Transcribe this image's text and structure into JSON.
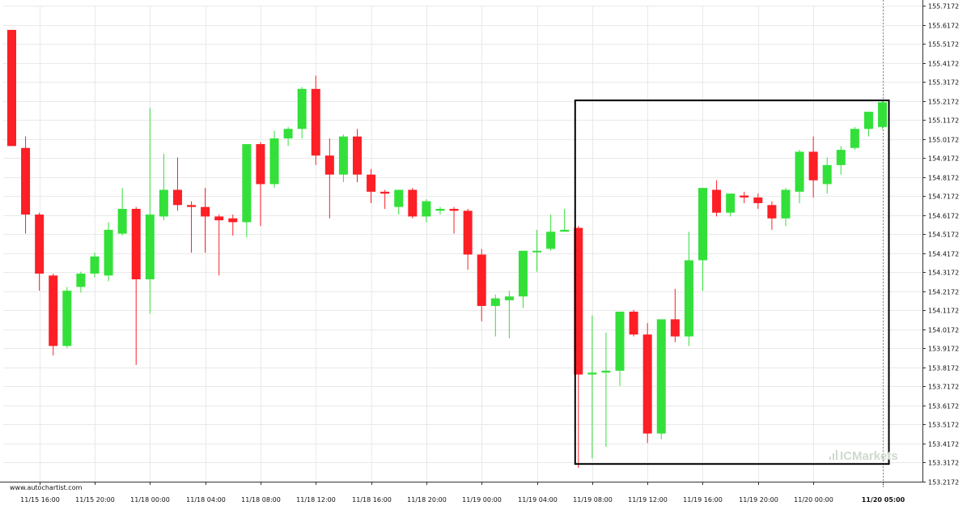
{
  "credit": "www.autochartist.com",
  "watermark": "ICMarkets",
  "colors": {
    "up": "#33e03a",
    "down": "#fc1f26",
    "grid": "#e9e9e9",
    "axis": "#333333",
    "box": "#000000"
  },
  "chart_data": {
    "type": "candlestick",
    "ylim": [
      153.2172,
      155.7172
    ],
    "y_ticks": [
      155.7172,
      155.6172,
      155.5172,
      155.4172,
      155.3172,
      155.2172,
      155.1172,
      155.0172,
      154.9172,
      154.8172,
      154.7172,
      154.6172,
      154.5172,
      154.4172,
      154.3172,
      154.2172,
      154.1172,
      154.0172,
      153.9172,
      153.8172,
      153.7172,
      153.6172,
      153.5172,
      153.4172,
      153.3172,
      153.2172
    ],
    "x_ticks": [
      {
        "label": "11/15 16:00",
        "index": 2
      },
      {
        "label": "11/15 20:00",
        "index": 6
      },
      {
        "label": "11/18 00:00",
        "index": 10
      },
      {
        "label": "11/18 04:00",
        "index": 14
      },
      {
        "label": "11/18 08:00",
        "index": 18
      },
      {
        "label": "11/18 12:00",
        "index": 22
      },
      {
        "label": "11/18 16:00",
        "index": 26
      },
      {
        "label": "11/18 20:00",
        "index": 30
      },
      {
        "label": "11/19 00:00",
        "index": 34
      },
      {
        "label": "11/19 04:00",
        "index": 38
      },
      {
        "label": "11/19 08:00",
        "index": 42
      },
      {
        "label": "11/19 12:00",
        "index": 46
      },
      {
        "label": "11/19 16:00",
        "index": 50
      },
      {
        "label": "11/19 20:00",
        "index": 54
      },
      {
        "label": "11/20 00:00",
        "index": 58
      },
      {
        "label": "11/20 05:00",
        "index": 63,
        "bold": true
      }
    ],
    "candles": [
      {
        "o": 155.59,
        "h": 155.59,
        "l": 154.98,
        "c": 154.98
      },
      {
        "o": 154.97,
        "h": 155.03,
        "l": 154.52,
        "c": 154.62
      },
      {
        "o": 154.62,
        "h": 154.63,
        "l": 154.22,
        "c": 154.31
      },
      {
        "o": 154.3,
        "h": 154.31,
        "l": 153.88,
        "c": 153.93
      },
      {
        "o": 153.93,
        "h": 154.24,
        "l": 153.92,
        "c": 154.22
      },
      {
        "o": 154.24,
        "h": 154.32,
        "l": 154.21,
        "c": 154.31
      },
      {
        "o": 154.31,
        "h": 154.42,
        "l": 154.29,
        "c": 154.4
      },
      {
        "o": 154.3,
        "h": 154.58,
        "l": 154.27,
        "c": 154.54
      },
      {
        "o": 154.52,
        "h": 154.76,
        "l": 154.51,
        "c": 154.65
      },
      {
        "o": 154.65,
        "h": 154.66,
        "l": 153.83,
        "c": 154.28
      },
      {
        "o": 154.28,
        "h": 155.18,
        "l": 154.1,
        "c": 154.62
      },
      {
        "o": 154.61,
        "h": 154.94,
        "l": 154.59,
        "c": 154.75
      },
      {
        "o": 154.75,
        "h": 154.92,
        "l": 154.64,
        "c": 154.67
      },
      {
        "o": 154.67,
        "h": 154.69,
        "l": 154.42,
        "c": 154.66
      },
      {
        "o": 154.66,
        "h": 154.76,
        "l": 154.42,
        "c": 154.61
      },
      {
        "o": 154.61,
        "h": 154.62,
        "l": 154.3,
        "c": 154.59
      },
      {
        "o": 154.6,
        "h": 154.62,
        "l": 154.51,
        "c": 154.58
      },
      {
        "o": 154.58,
        "h": 154.99,
        "l": 154.5,
        "c": 154.99
      },
      {
        "o": 154.99,
        "h": 155.0,
        "l": 154.56,
        "c": 154.78
      },
      {
        "o": 154.78,
        "h": 155.06,
        "l": 154.76,
        "c": 155.02
      },
      {
        "o": 155.02,
        "h": 155.08,
        "l": 154.98,
        "c": 155.07
      },
      {
        "o": 155.07,
        "h": 155.29,
        "l": 155.02,
        "c": 155.28
      },
      {
        "o": 155.28,
        "h": 155.35,
        "l": 154.88,
        "c": 154.93
      },
      {
        "o": 154.93,
        "h": 155.02,
        "l": 154.6,
        "c": 154.83
      },
      {
        "o": 154.83,
        "h": 155.04,
        "l": 154.79,
        "c": 155.03
      },
      {
        "o": 155.03,
        "h": 155.07,
        "l": 154.79,
        "c": 154.83
      },
      {
        "o": 154.83,
        "h": 154.86,
        "l": 154.68,
        "c": 154.74
      },
      {
        "o": 154.74,
        "h": 154.75,
        "l": 154.65,
        "c": 154.73
      },
      {
        "o": 154.66,
        "h": 154.75,
        "l": 154.62,
        "c": 154.75
      },
      {
        "o": 154.75,
        "h": 154.76,
        "l": 154.6,
        "c": 154.61
      },
      {
        "o": 154.61,
        "h": 154.7,
        "l": 154.58,
        "c": 154.69
      },
      {
        "o": 154.64,
        "h": 154.66,
        "l": 154.62,
        "c": 154.65
      },
      {
        "o": 154.65,
        "h": 154.66,
        "l": 154.52,
        "c": 154.64
      },
      {
        "o": 154.64,
        "h": 154.65,
        "l": 154.33,
        "c": 154.41
      },
      {
        "o": 154.41,
        "h": 154.44,
        "l": 154.06,
        "c": 154.14
      },
      {
        "o": 154.14,
        "h": 154.2,
        "l": 153.98,
        "c": 154.18
      },
      {
        "o": 154.17,
        "h": 154.22,
        "l": 153.97,
        "c": 154.19
      },
      {
        "o": 154.19,
        "h": 154.43,
        "l": 154.13,
        "c": 154.43
      },
      {
        "o": 154.43,
        "h": 154.54,
        "l": 154.32,
        "c": 154.43
      },
      {
        "o": 154.44,
        "h": 154.62,
        "l": 154.43,
        "c": 154.53
      },
      {
        "o": 154.53,
        "h": 154.65,
        "l": 154.53,
        "c": 154.54
      },
      {
        "o": 154.55,
        "h": 154.56,
        "l": 153.29,
        "c": 153.78
      },
      {
        "o": 153.78,
        "h": 154.09,
        "l": 153.34,
        "c": 153.79
      },
      {
        "o": 153.79,
        "h": 154.0,
        "l": 153.4,
        "c": 153.8
      },
      {
        "o": 153.8,
        "h": 154.1,
        "l": 153.72,
        "c": 154.11
      },
      {
        "o": 154.11,
        "h": 154.12,
        "l": 153.98,
        "c": 153.99
      },
      {
        "o": 153.99,
        "h": 154.05,
        "l": 153.42,
        "c": 153.47
      },
      {
        "o": 153.47,
        "h": 154.06,
        "l": 153.44,
        "c": 154.07
      },
      {
        "o": 154.07,
        "h": 154.23,
        "l": 153.95,
        "c": 153.98
      },
      {
        "o": 153.98,
        "h": 154.53,
        "l": 153.93,
        "c": 154.38
      },
      {
        "o": 154.38,
        "h": 154.76,
        "l": 154.22,
        "c": 154.76
      },
      {
        "o": 154.75,
        "h": 154.8,
        "l": 154.61,
        "c": 154.63
      },
      {
        "o": 154.63,
        "h": 154.73,
        "l": 154.61,
        "c": 154.73
      },
      {
        "o": 154.72,
        "h": 154.74,
        "l": 154.68,
        "c": 154.71
      },
      {
        "o": 154.71,
        "h": 154.73,
        "l": 154.65,
        "c": 154.68
      },
      {
        "o": 154.67,
        "h": 154.69,
        "l": 154.54,
        "c": 154.6
      },
      {
        "o": 154.6,
        "h": 154.76,
        "l": 154.56,
        "c": 154.75
      },
      {
        "o": 154.74,
        "h": 154.96,
        "l": 154.68,
        "c": 154.95
      },
      {
        "o": 154.95,
        "h": 155.03,
        "l": 154.71,
        "c": 154.8
      },
      {
        "o": 154.78,
        "h": 154.92,
        "l": 154.73,
        "c": 154.88
      },
      {
        "o": 154.88,
        "h": 154.98,
        "l": 154.83,
        "c": 154.96
      },
      {
        "o": 154.97,
        "h": 155.08,
        "l": 154.96,
        "c": 155.07
      },
      {
        "o": 155.07,
        "h": 155.16,
        "l": 155.03,
        "c": 155.16
      },
      {
        "o": 155.08,
        "h": 155.22,
        "l": 155.07,
        "c": 155.21
      }
    ],
    "highlight": {
      "from_index": 41,
      "to_index": 63,
      "low": 153.31,
      "high": 155.22
    }
  }
}
